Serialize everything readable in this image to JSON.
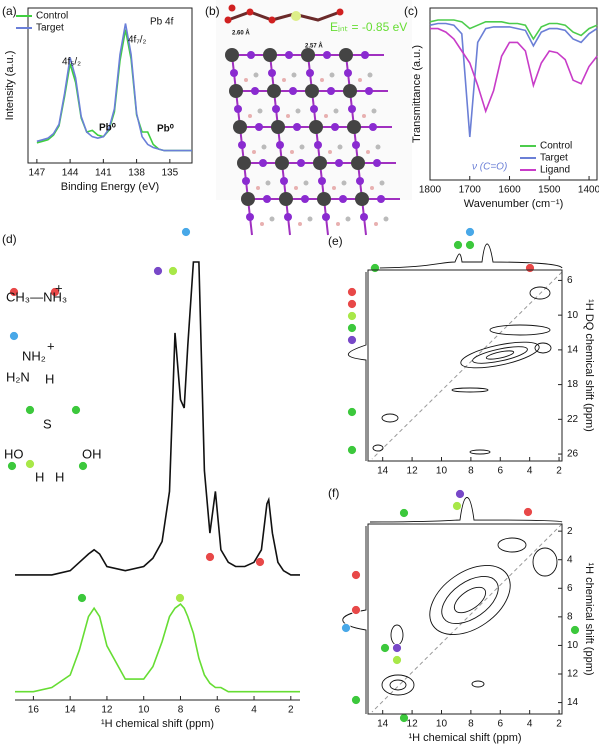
{
  "figure_b": {
    "label": "(b)",
    "annotations": [
      "2.60 Å",
      "2.57 Å",
      "Eᵢₙₜ = -0.85 eV"
    ]
  },
  "chart_data": [
    {
      "type": "line",
      "label": "(a)",
      "x_label": "Binding Energy (eV)",
      "y_label": "Intensity (a.u.)",
      "x": [
        147,
        146.5,
        146,
        145.5,
        145,
        144.5,
        144,
        143.5,
        143,
        142.5,
        142,
        141.5,
        141,
        140.5,
        140,
        139.5,
        139,
        138.5,
        138,
        137.5,
        137,
        136.5,
        136,
        135.5,
        135,
        134.5,
        134,
        133.5,
        133
      ],
      "series": [
        {
          "name": "Control",
          "color": "#3fcf3f",
          "values": [
            0.13,
            0.14,
            0.15,
            0.18,
            0.24,
            0.43,
            0.64,
            0.52,
            0.29,
            0.2,
            0.21,
            0.18,
            0.17,
            0.21,
            0.33,
            0.66,
            0.86,
            0.67,
            0.31,
            0.2,
            0.2,
            0.12,
            0.09,
            0.08,
            0.08,
            0.08,
            0.08,
            0.08,
            0.08
          ]
        },
        {
          "name": "Target",
          "color": "#6a7fd8",
          "values": [
            0.14,
            0.15,
            0.16,
            0.19,
            0.25,
            0.45,
            0.68,
            0.55,
            0.3,
            0.2,
            0.17,
            0.16,
            0.17,
            0.22,
            0.35,
            0.7,
            0.9,
            0.7,
            0.32,
            0.17,
            0.12,
            0.1,
            0.09,
            0.08,
            0.08,
            0.08,
            0.08,
            0.08,
            0.08
          ]
        }
      ],
      "xlim": [
        147.8,
        133
      ],
      "xticks": [
        147,
        144,
        141,
        138,
        135
      ],
      "ylim": [
        0,
        1
      ],
      "legend": "upper left",
      "annotations": [
        "Pb 4f",
        "4f₅/₂",
        "4f₇/₂",
        "Pb⁰",
        "Pb⁰"
      ]
    },
    {
      "type": "line",
      "label": "(c)",
      "x_label": "Wavenumber (cm⁻¹)",
      "y_label": "Transmittance (a.u.)",
      "x": [
        1800,
        1780,
        1760,
        1740,
        1720,
        1700,
        1680,
        1660,
        1640,
        1620,
        1600,
        1580,
        1560,
        1540,
        1520,
        1500,
        1480,
        1460,
        1440,
        1420,
        1400,
        1380
      ],
      "series": [
        {
          "name": "Control",
          "color": "#4ccc4c",
          "values": [
            0.92,
            0.93,
            0.93,
            0.93,
            0.92,
            0.88,
            0.9,
            0.92,
            0.92,
            0.92,
            0.91,
            0.91,
            0.9,
            0.82,
            0.89,
            0.91,
            0.91,
            0.9,
            0.86,
            0.84,
            0.88,
            0.9
          ]
        },
        {
          "name": "Target",
          "color": "#6b7fd6",
          "values": [
            0.9,
            0.91,
            0.91,
            0.9,
            0.85,
            0.25,
            0.8,
            0.88,
            0.89,
            0.89,
            0.89,
            0.88,
            0.87,
            0.78,
            0.86,
            0.88,
            0.88,
            0.87,
            0.82,
            0.8,
            0.85,
            0.88
          ]
        },
        {
          "name": "Ligand",
          "color": "#c83cc8",
          "values": [
            0.88,
            0.88,
            0.86,
            0.82,
            0.75,
            0.68,
            0.55,
            0.4,
            0.52,
            0.72,
            0.8,
            0.8,
            0.75,
            0.55,
            0.68,
            0.75,
            0.74,
            0.7,
            0.58,
            0.56,
            0.66,
            0.72
          ]
        }
      ],
      "xlim": [
        1800,
        1380
      ],
      "xticks": [
        1800,
        1700,
        1600,
        1500,
        1400
      ],
      "ylim": [
        0,
        1
      ],
      "legend": "lower right",
      "annotations": [
        "ν (C=O)"
      ]
    },
    {
      "type": "line",
      "label": "(d)",
      "x_label": "¹H chemical shift (ppm)",
      "x": [
        17,
        16,
        15,
        14,
        13.5,
        13,
        12.7,
        12.4,
        12,
        11,
        10,
        9.5,
        9,
        8.6,
        8.3,
        8.0,
        7.8,
        7.6,
        7.3,
        7.0,
        6.7,
        6.4,
        6.1,
        5.8,
        5.4,
        5,
        4.5,
        4,
        3.6,
        3.3,
        3.2,
        3.0,
        2.7,
        2.4,
        2,
        1.5
      ],
      "series": [
        {
          "color": "#111111",
          "values": [
            0.3,
            0.3,
            0.3,
            0.31,
            0.33,
            0.35,
            0.36,
            0.35,
            0.32,
            0.31,
            0.32,
            0.34,
            0.38,
            0.5,
            0.88,
            0.72,
            0.7,
            0.85,
            1.05,
            1.05,
            0.55,
            0.4,
            0.5,
            0.36,
            0.33,
            0.32,
            0.32,
            0.33,
            0.36,
            0.47,
            0.48,
            0.4,
            0.33,
            0.31,
            0.3,
            0.3
          ]
        },
        {
          "color": "#66dd33",
          "values": [
            0.02,
            0.02,
            0.03,
            0.06,
            0.12,
            0.2,
            0.22,
            0.2,
            0.13,
            0.05,
            0.05,
            0.08,
            0.14,
            0.2,
            0.22,
            0.23,
            0.22,
            0.2,
            0.16,
            0.1,
            0.06,
            0.04,
            0.03,
            0.03,
            0.02,
            0.02,
            0.02,
            0.02,
            0.02,
            0.02,
            0.02,
            0.02,
            0.02,
            0.02,
            0.02,
            0.02
          ]
        }
      ],
      "xlim": [
        17,
        1.5
      ],
      "xticks": [
        16,
        14,
        12,
        10,
        8,
        6,
        4,
        2
      ],
      "ylim": [
        0,
        1.05
      ],
      "annotations": [
        "CH₃—NH₃",
        "+",
        "NH₂",
        "+",
        "H₂N",
        "H",
        "S",
        "HO",
        "OH",
        "H",
        "H"
      ]
    },
    {
      "type": "contour",
      "label": "(e)",
      "y_label": "¹H DQ chemical shift (ppm)",
      "xlim": [
        15,
        1.8
      ],
      "xticks": [
        14,
        12,
        10,
        8,
        6,
        4,
        2
      ],
      "ylim": [
        4.8,
        26.8
      ],
      "yticks": [
        6,
        10,
        14,
        18,
        22,
        26
      ],
      "y_reversed": true
    },
    {
      "type": "contour",
      "label": "(f)",
      "x_label": "¹H chemical shift (ppm)",
      "y_label": "¹H chemical shift (ppm)",
      "xlim": [
        15,
        1.8
      ],
      "xticks": [
        14,
        12,
        10,
        8,
        6,
        4,
        2
      ],
      "ylim": [
        1.5,
        14.8
      ],
      "yticks": [
        2,
        4,
        6,
        8,
        10,
        12,
        14
      ],
      "y_reversed": true
    }
  ]
}
